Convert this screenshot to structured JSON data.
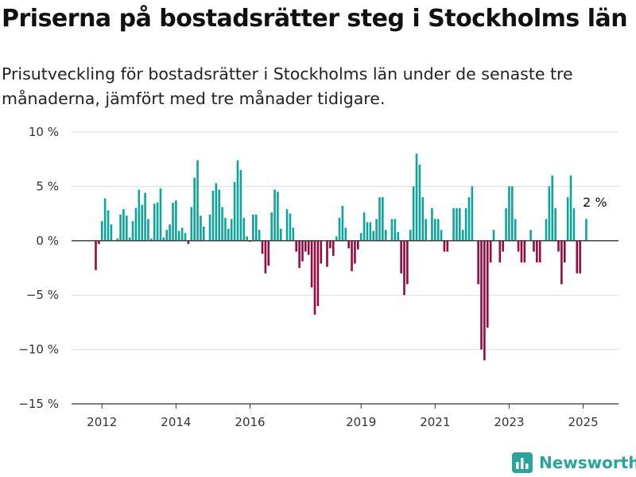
{
  "header": {
    "title": "Priserna på bostadsrätter steg i Stockholms län",
    "subtitle": "Prisutveckling för bostadsrätter i Stockholms län under de senaste tre månaderna, jämfört med tre månader tidigare."
  },
  "brand": {
    "name": "Newsworthy",
    "color": "#2aa39b",
    "icon": "bar-chart-logo-icon"
  },
  "chart_data": {
    "type": "bar",
    "title": "",
    "xlabel": "",
    "ylabel": "",
    "ylim": [
      -15,
      10
    ],
    "yticks": [
      10,
      5,
      0,
      -5,
      -10,
      -15
    ],
    "ytick_labels": [
      "10 %",
      "5 %",
      "0 %",
      "−5 %",
      "−10 %",
      "−15 %"
    ],
    "xtick_labels": [
      "2012",
      "2014",
      "2016",
      "2019",
      "2021",
      "2023",
      "2025"
    ],
    "xtick_indices": [
      2,
      26,
      50,
      86,
      110,
      134,
      158
    ],
    "positive_color": "#0ea39b",
    "negative_color": "#960a42",
    "grid": true,
    "values": [
      -2.7,
      -0.3,
      1.8,
      3.9,
      2.8,
      1.5,
      0,
      0.2,
      2.4,
      2.9,
      2.3,
      0.3,
      1.8,
      3.0,
      4.7,
      3.3,
      4.4,
      2.0,
      0.2,
      3.4,
      3.5,
      4.8,
      0.3,
      1.0,
      1.5,
      3.5,
      3.7,
      0.9,
      1.2,
      0.7,
      -0.3,
      3.1,
      5.8,
      7.4,
      2.3,
      1.3,
      0,
      2.4,
      4.6,
      5.3,
      4.7,
      3.1,
      2.1,
      1.1,
      2.0,
      5.4,
      7.4,
      6.5,
      2.1,
      0.4,
      -0.1,
      2.4,
      2.4,
      1.0,
      -1.2,
      -3.0,
      -2.3,
      2.6,
      4.7,
      4.5,
      1.1,
      0,
      2.9,
      2.5,
      1.2,
      -1.0,
      -2.5,
      -1.9,
      -1.0,
      -1.3,
      -4.3,
      -6.8,
      -6.0,
      -2.1,
      0,
      -2.4,
      -0.7,
      -1.4,
      0.4,
      2.1,
      3.2,
      1.2,
      -0.7,
      -2.8,
      -2.1,
      -0.8,
      0.7,
      2.6,
      1.7,
      1.7,
      0.9,
      2.0,
      4.0,
      4.0,
      1.0,
      0,
      2.0,
      2.0,
      0.8,
      -3.0,
      -5.0,
      -4.0,
      1.0,
      5.0,
      8.0,
      7.0,
      4.0,
      2.0,
      0,
      3.0,
      2.0,
      2.0,
      1.0,
      -1.0,
      -1.0,
      0,
      3.0,
      3.0,
      3.0,
      1.0,
      3.0,
      4.0,
      5.0,
      0,
      -4.0,
      -10.0,
      -11.0,
      -8.0,
      -2.0,
      1.0,
      0,
      -2.0,
      -1.0,
      3.0,
      5.0,
      5.0,
      2.0,
      -1.0,
      -2.0,
      -2.0,
      0,
      1.0,
      -1.0,
      -2.0,
      -2.0,
      0,
      2.0,
      5.0,
      6.0,
      3.0,
      -1.0,
      -4.0,
      -2.0,
      4.0,
      6.0,
      3.0,
      -3.0,
      -3.0,
      0,
      2.0
    ],
    "annotation": {
      "text": "2 %",
      "index": 162
    }
  }
}
